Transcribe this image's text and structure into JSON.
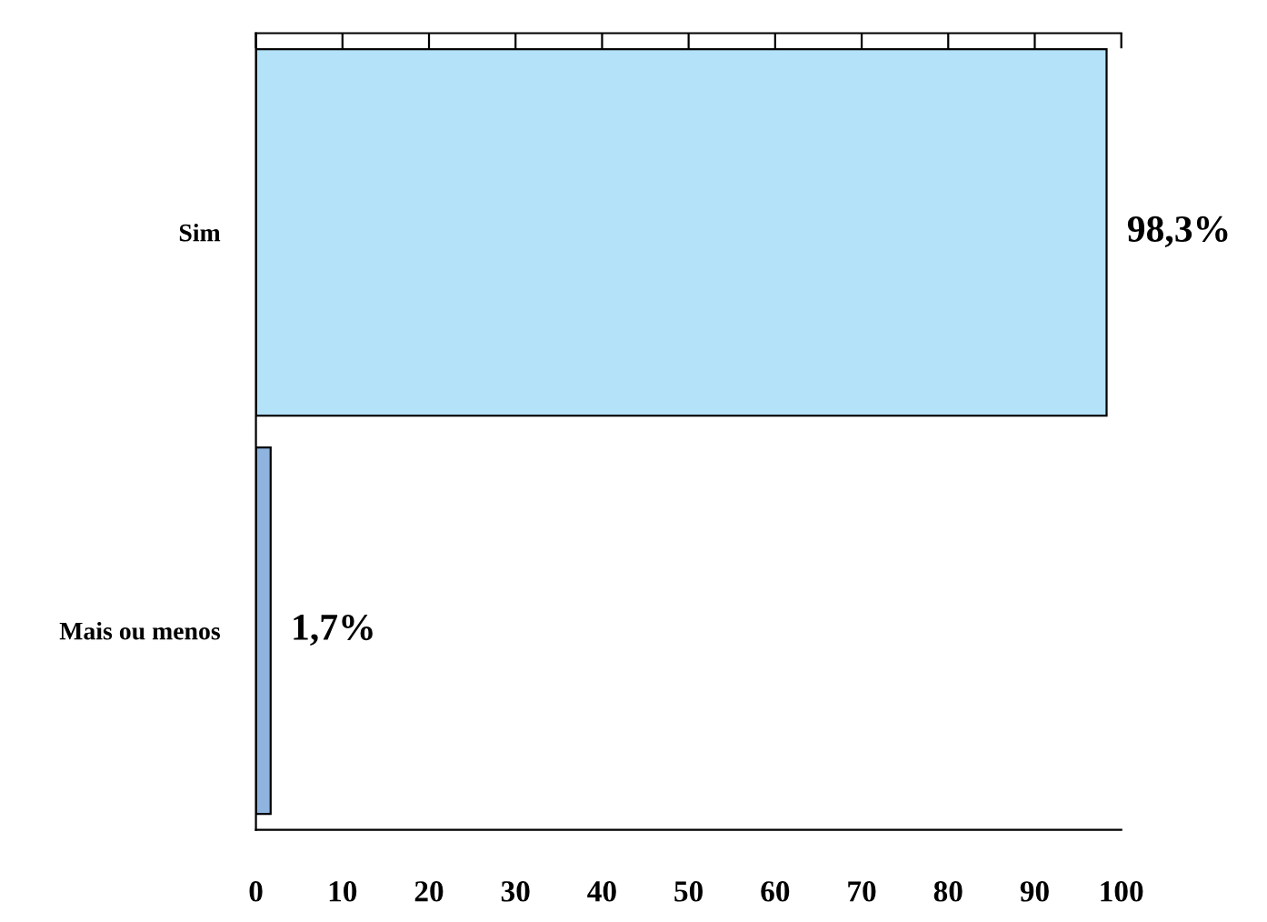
{
  "chart_data": {
    "type": "bar",
    "orientation": "horizontal",
    "categories": [
      "Sim",
      "Mais ou menos"
    ],
    "values": [
      98.3,
      1.7
    ],
    "colors": [
      "#b4e2f8",
      "#8fb4e0"
    ],
    "value_labels": [
      "98,3%",
      "1,7%"
    ],
    "xlim": [
      0,
      100
    ],
    "xticks": [
      0,
      10,
      20,
      30,
      40,
      50,
      60,
      70,
      80,
      90,
      100
    ],
    "grid": false
  }
}
